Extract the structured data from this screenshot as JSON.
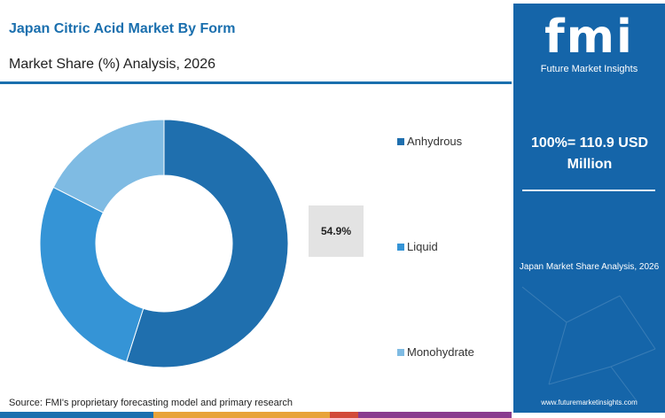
{
  "header": {
    "title": "Japan Citric Acid Market By Form",
    "subtitle": "Market Share (%) Analysis, 2026"
  },
  "chart_data": {
    "type": "pie",
    "style": "donut",
    "categories": [
      "Anhydrous",
      "Liquid",
      "Monohydrate"
    ],
    "values": [
      54.9,
      27.6,
      17.5
    ],
    "colors": [
      "#1f6fae",
      "#3594d6",
      "#7fbbe3"
    ],
    "data_labels": [
      {
        "category": "Anhydrous",
        "label": "54.9%"
      }
    ],
    "legend_position": "right"
  },
  "source": "Source: FMI's proprietary forecasting model and primary research",
  "side": {
    "logo_text": "fmi",
    "logo_tagline": "Future Market Insights",
    "total_line1": "100%= 110.9 USD",
    "total_line2": "Million",
    "caption": "Japan Market Share Analysis, 2026",
    "url": "www.futuremarketinsights.com"
  },
  "footer_colors": [
    "#1a6fae",
    "#e8a33a",
    "#d24a3a",
    "#8a3b8f"
  ]
}
